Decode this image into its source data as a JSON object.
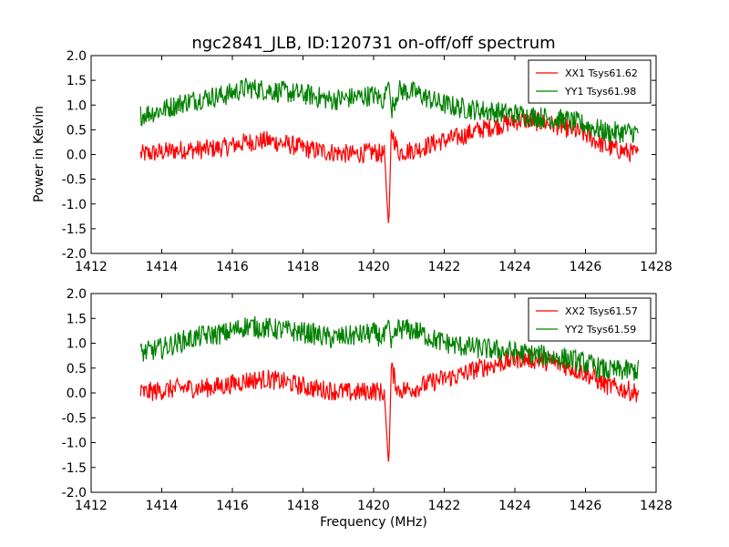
{
  "figure": {
    "title": "ngc2841_JLB, ID:120731 on-off/off spectrum",
    "ylabel": "Power in Kelvin",
    "xlabel": "Frequency (MHz)"
  },
  "chart_data": [
    {
      "type": "line",
      "xlim": [
        1412,
        1428
      ],
      "ylim": [
        -2.0,
        2.0
      ],
      "xticks": [
        "1412",
        "1414",
        "1416",
        "1418",
        "1420",
        "1422",
        "1424",
        "1426",
        "1428"
      ],
      "yticks": [
        "-2.0",
        "-1.5",
        "-1.0",
        "-0.5",
        "0.0",
        "0.5",
        "1.0",
        "1.5",
        "2.0"
      ],
      "legend_position": "top-right",
      "x": [
        1413.4,
        1414.0,
        1414.6,
        1415.2,
        1415.8,
        1416.4,
        1417.0,
        1417.6,
        1418.2,
        1418.8,
        1419.4,
        1420.0,
        1420.3,
        1420.43,
        1420.5,
        1420.7,
        1421.2,
        1421.8,
        1422.4,
        1423.0,
        1423.6,
        1424.2,
        1424.8,
        1425.4,
        1426.0,
        1426.6,
        1427.2,
        1427.5
      ],
      "series": [
        {
          "name": "XX1 Tsys61.62",
          "color": "#ff0000",
          "values": [
            0.0,
            0.05,
            0.1,
            0.1,
            0.15,
            0.25,
            0.28,
            0.2,
            0.1,
            0.05,
            0.0,
            0.05,
            0.0,
            -1.5,
            0.5,
            0.05,
            0.1,
            0.25,
            0.35,
            0.5,
            0.6,
            0.7,
            0.65,
            0.55,
            0.4,
            0.15,
            0.05,
            0.0
          ]
        },
        {
          "name": "YY1 Tsys61.98",
          "color": "#008000",
          "values": [
            0.8,
            0.9,
            1.05,
            1.15,
            1.2,
            1.35,
            1.3,
            1.25,
            1.2,
            1.1,
            1.15,
            1.2,
            1.1,
            1.5,
            0.9,
            1.3,
            1.25,
            1.05,
            0.95,
            0.9,
            0.85,
            0.8,
            0.75,
            0.7,
            0.6,
            0.45,
            0.45,
            0.45
          ]
        }
      ]
    },
    {
      "type": "line",
      "xlabel": "Frequency (MHz)",
      "xlim": [
        1412,
        1428
      ],
      "ylim": [
        -2.0,
        2.0
      ],
      "xticks": [
        "1412",
        "1414",
        "1416",
        "1418",
        "1420",
        "1422",
        "1424",
        "1426",
        "1428"
      ],
      "yticks": [
        "-2.0",
        "-1.5",
        "-1.0",
        "-0.5",
        "0.0",
        "0.5",
        "1.0",
        "1.5",
        "2.0"
      ],
      "legend_position": "top-right",
      "x": [
        1413.4,
        1414.0,
        1414.6,
        1415.2,
        1415.8,
        1416.4,
        1417.0,
        1417.6,
        1418.2,
        1418.8,
        1419.4,
        1420.0,
        1420.3,
        1420.43,
        1420.5,
        1420.7,
        1421.2,
        1421.8,
        1422.4,
        1423.0,
        1423.6,
        1424.2,
        1424.8,
        1425.4,
        1426.0,
        1426.6,
        1427.2,
        1427.5
      ],
      "series": [
        {
          "name": "XX2 Tsys61.57",
          "color": "#ff0000",
          "values": [
            0.0,
            0.05,
            0.1,
            0.1,
            0.15,
            0.25,
            0.28,
            0.2,
            0.1,
            0.05,
            0.0,
            0.05,
            0.0,
            -1.5,
            0.5,
            0.05,
            0.1,
            0.25,
            0.35,
            0.5,
            0.6,
            0.7,
            0.65,
            0.55,
            0.4,
            0.15,
            0.05,
            0.0
          ]
        },
        {
          "name": "YY2 Tsys61.59",
          "color": "#008000",
          "values": [
            0.8,
            0.9,
            1.05,
            1.15,
            1.2,
            1.35,
            1.3,
            1.25,
            1.2,
            1.1,
            1.15,
            1.2,
            1.1,
            1.5,
            0.9,
            1.3,
            1.25,
            1.05,
            0.95,
            0.9,
            0.85,
            0.8,
            0.75,
            0.7,
            0.6,
            0.45,
            0.45,
            0.45
          ]
        }
      ]
    }
  ]
}
